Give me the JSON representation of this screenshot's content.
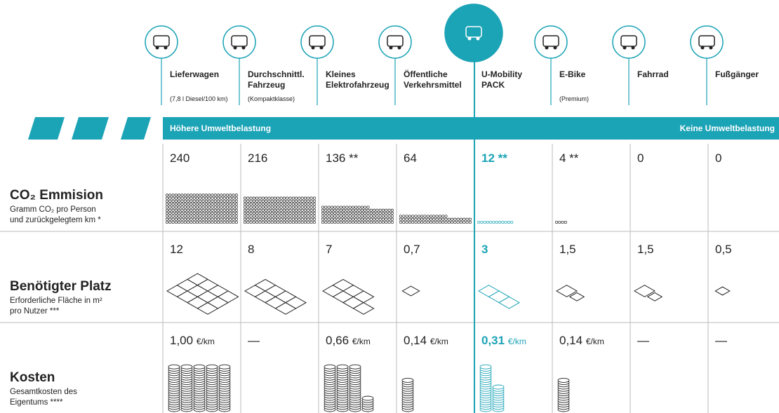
{
  "accent_color": "#1ba3b6",
  "band": {
    "left": "Höhere Umweltbelastung",
    "right": "Keine Umweltbelastung"
  },
  "modes": [
    {
      "name": [
        "Lieferwagen"
      ],
      "note": "(7,8 l Diesel/100 km)"
    },
    {
      "name": [
        "Durchschnittl.",
        "Fahrzeug"
      ],
      "note": "(Kompaktklasse)"
    },
    {
      "name": [
        "Kleines",
        "Elektrofahrzeug"
      ]
    },
    {
      "name": [
        "Öffentliche",
        "Verkehrsmittel"
      ]
    },
    {
      "name": [
        "U-Mobility",
        "PACK"
      ],
      "highlight": true
    },
    {
      "name": [
        "E-Bike"
      ],
      "note": "(Premium)"
    },
    {
      "name": [
        "Fahrrad"
      ]
    },
    {
      "name": [
        "Fußgänger"
      ]
    }
  ],
  "rows": [
    {
      "title": "CO₂ Emmision",
      "subtitle": [
        "Gramm CO₂ pro Person",
        "und zurückgelegtem km *"
      ],
      "kind": "dots",
      "values": [
        240,
        216,
        136,
        64,
        12,
        4,
        0,
        0
      ],
      "value_labels": [
        "240",
        "216",
        "136 **",
        "64",
        "12 **",
        "4 **",
        "0",
        "0"
      ]
    },
    {
      "title": "Benötigter Platz",
      "subtitle": [
        "Erforderliche Fläche in m²",
        "pro Nutzer ***"
      ],
      "kind": "tiles",
      "values": [
        12,
        8,
        7,
        0.7,
        3,
        1.5,
        1.5,
        0.5
      ],
      "value_labels": [
        "12",
        "8",
        "7",
        "0,7",
        "3",
        "1,5",
        "1,5",
        "0,5"
      ]
    },
    {
      "title": "Kosten",
      "subtitle": [
        "Gesamtkosten des",
        "Eigentums ****"
      ],
      "kind": "coins",
      "unit": "€/km",
      "values": [
        1.0,
        null,
        0.66,
        0.14,
        0.31,
        0.14,
        null,
        null
      ],
      "value_labels": [
        "1,00",
        "—",
        "0,66",
        "0,14",
        "0,31",
        "0,14",
        "—",
        "—"
      ]
    }
  ]
}
